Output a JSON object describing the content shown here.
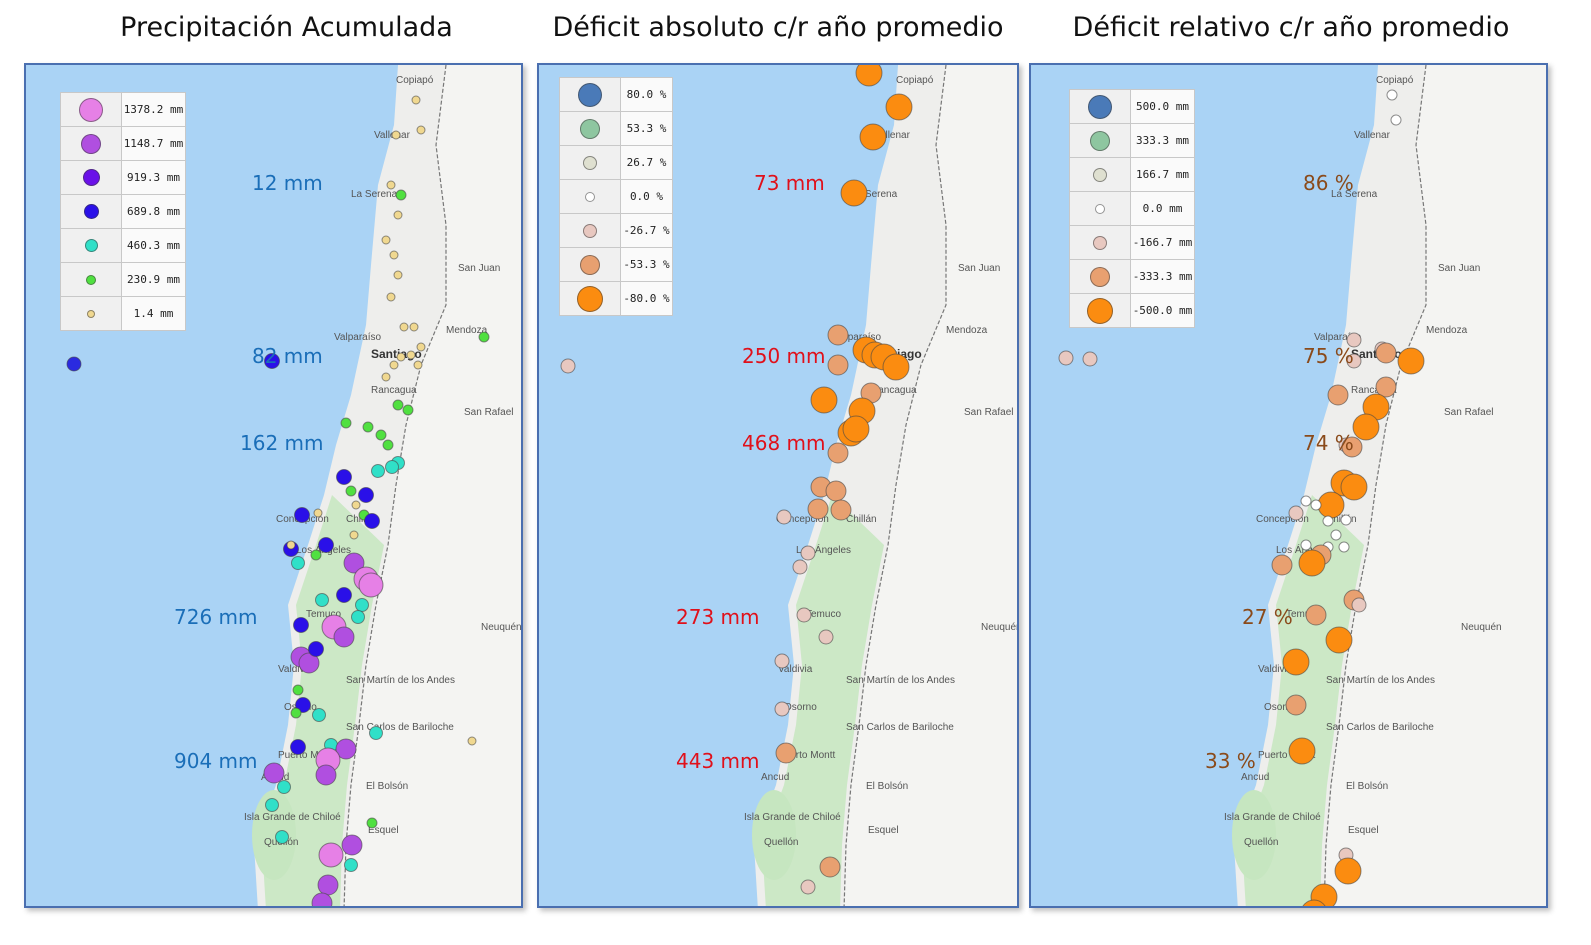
{
  "panels": [
    {
      "title": "Precipitación Acumulada",
      "legend": [
        {
          "label": "1378.2 mm",
          "color": "#e680e6",
          "size": 24
        },
        {
          "label": "1148.7 mm",
          "color": "#b04fe0",
          "size": 20
        },
        {
          "label": "919.3 mm",
          "color": "#6a10e8",
          "size": 17
        },
        {
          "label": "689.8 mm",
          "color": "#2a10e8",
          "size": 15
        },
        {
          "label": "460.3 mm",
          "color": "#30e0c8",
          "size": 13
        },
        {
          "label": "230.9 mm",
          "color": "#50e040",
          "size": 10
        },
        {
          "label": "1.4 mm",
          "color": "#f0d890",
          "size": 8
        }
      ],
      "annotations": [
        "12 mm",
        "82 mm",
        "162 mm",
        "726 mm",
        "904 mm"
      ],
      "annotation_color": "#1a6eb8",
      "outlier_color": "#2a2ae0"
    },
    {
      "title": "Déficit absoluto c/r año promedio",
      "legend": [
        {
          "label": "80.0 %",
          "color": "#4a7ab8",
          "size": 24
        },
        {
          "label": "53.3 %",
          "color": "#8ec6a0",
          "size": 20
        },
        {
          "label": "26.7 %",
          "color": "#dfe0d0",
          "size": 14
        },
        {
          "label": "0.0 %",
          "color": "#ffffff",
          "size": 10
        },
        {
          "label": "-26.7 %",
          "color": "#e8c8c0",
          "size": 14
        },
        {
          "label": "-53.3 %",
          "color": "#e8a070",
          "size": 20
        },
        {
          "label": "-80.0 %",
          "color": "#fb8c10",
          "size": 26
        }
      ],
      "annotations": [
        "73 mm",
        "250 mm",
        "468 mm",
        "273 mm",
        "443 mm"
      ],
      "annotation_color": "#e0101a",
      "outlier_color": "#e8c8c0"
    },
    {
      "title": "Déficit relativo c/r año promedio",
      "legend": [
        {
          "label": "500.0 mm",
          "color": "#4a7ab8",
          "size": 24
        },
        {
          "label": "333.3 mm",
          "color": "#8ec6a0",
          "size": 20
        },
        {
          "label": "166.7 mm",
          "color": "#dfe0d0",
          "size": 14
        },
        {
          "label": "0.0 mm",
          "color": "#ffffff",
          "size": 10
        },
        {
          "label": "-166.7 mm",
          "color": "#e8c8c0",
          "size": 14
        },
        {
          "label": "-333.3 mm",
          "color": "#e8a070",
          "size": 20
        },
        {
          "label": "-500.0 mm",
          "color": "#fb8c10",
          "size": 26
        }
      ],
      "annotations": [
        "86 %",
        "75 %",
        "74 %",
        "27 %",
        "33 %"
      ],
      "annotation_color": "#8a4a1a",
      "outlier_color": "#e8c8c0"
    }
  ],
  "cities": {
    "copiapo": "Copiapó",
    "vallenar": "Vallenar",
    "la_serena": "La Serena",
    "san_juan": "San Juan",
    "valparaiso": "Valparaíso",
    "santiago": "Santiago",
    "mendoza": "Mendoza",
    "rancagua": "Rancagua",
    "san_rafael": "San Rafael",
    "concepcion": "Concepción",
    "chillan": "Chillán",
    "los_angeles": "Los Ángeles",
    "temuco": "Temuco",
    "neuquen": "Neuquén",
    "valdivia": "Valdivia",
    "san_martin": "San Martín de los Andes",
    "osorno": "Osorno",
    "bariloche": "San Carlos de Bariloche",
    "puerto_montt": "Puerto Montt",
    "ancud": "Ancud",
    "el_bolson": "El Bolsón",
    "chiloe": "Isla Grande de Chiloé",
    "quellon": "Quellón",
    "esquel": "Esquel"
  },
  "colors": {
    "ocean": "#aad3f5",
    "land": "#f4f4f2",
    "chile_land": "#eeeeec",
    "forest": "#c6e6c0",
    "frame": "#4a6fb0"
  }
}
